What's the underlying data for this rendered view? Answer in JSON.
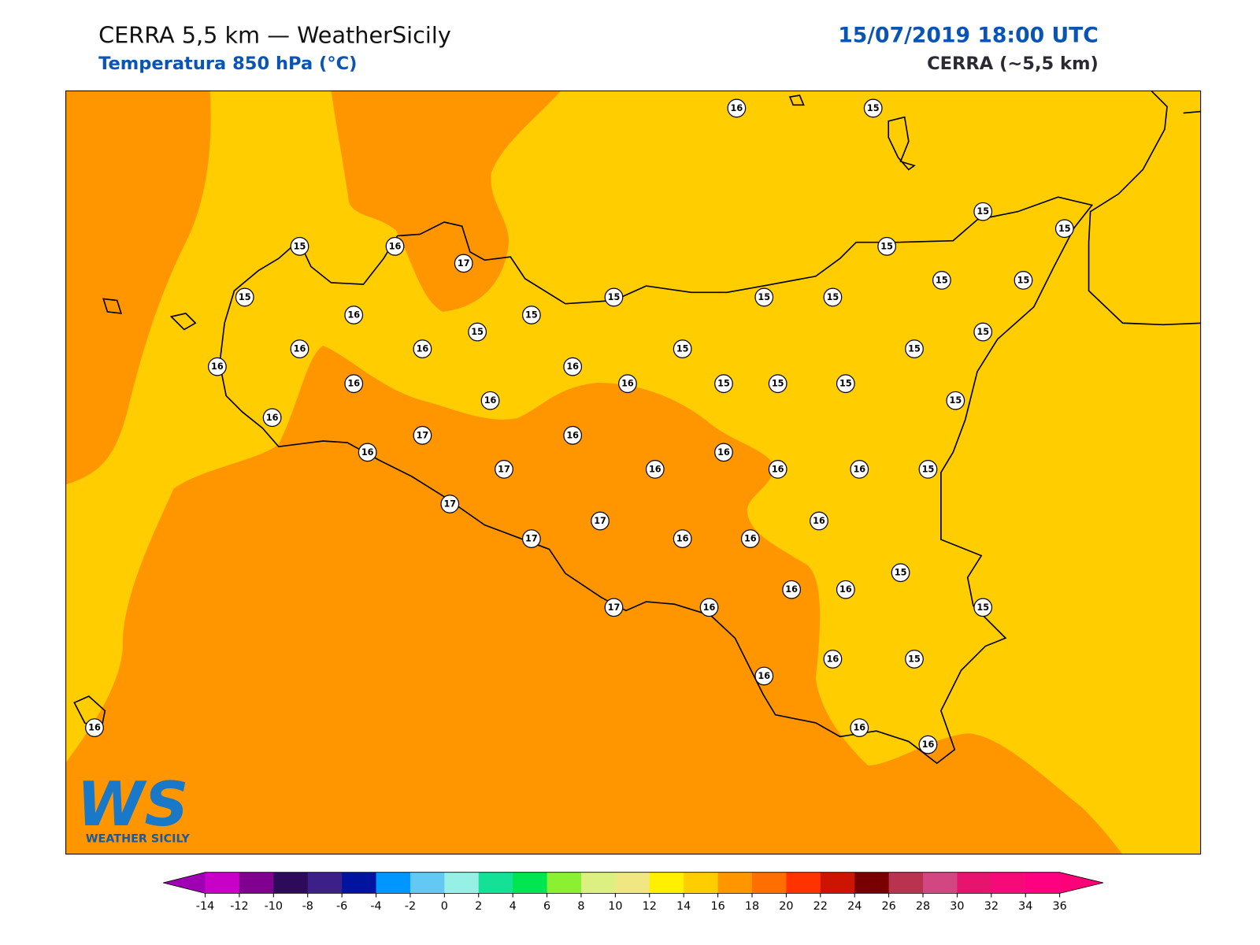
{
  "header": {
    "title": "CERRA 5,5 km — WeatherSicily",
    "subtitle": "Temperatura 850 hPa (°C)",
    "datetime": "15/07/2019 18:00 UTC",
    "model": "CERRA (~5,5 km)"
  },
  "logo": {
    "mark": "WS",
    "name": "WEATHER SICILY"
  },
  "stations": {
    "values": [
      16,
      15,
      15,
      15,
      15,
      16,
      17,
      15,
      15,
      16,
      15,
      15,
      15,
      15,
      15,
      15,
      15,
      16,
      16,
      15,
      15,
      15,
      16,
      16,
      16,
      16,
      15,
      15,
      15,
      15,
      16,
      16,
      17,
      16,
      16,
      17,
      16,
      16,
      16,
      16,
      15,
      16,
      17,
      17,
      17,
      16,
      16,
      15,
      16,
      16,
      15,
      17,
      16,
      16,
      16,
      15,
      16,
      16,
      16
    ]
  },
  "colorbar": {
    "ticks": [
      -14,
      -12,
      -10,
      -8,
      -6,
      -4,
      -2,
      0,
      2,
      4,
      6,
      8,
      10,
      12,
      14,
      16,
      18,
      20,
      22,
      24,
      26,
      28,
      30,
      32,
      34,
      36
    ],
    "colors": [
      "#c800c8",
      "#800090",
      "#2d0a5a",
      "#3c2087",
      "#0014a0",
      "#0096ff",
      "#64c8f5",
      "#96f0e6",
      "#14e196",
      "#00e650",
      "#8cf032",
      "#dcf082",
      "#f0e682",
      "#fff000",
      "#ffcd00",
      "#ff9600",
      "#ff6e00",
      "#ff3200",
      "#cd1400",
      "#780000",
      "#b93250",
      "#d24682",
      "#e6146e",
      "#f50a78",
      "#ff0080"
    ],
    "under_color": "#a000b4",
    "over_color": "#ff0078"
  }
}
